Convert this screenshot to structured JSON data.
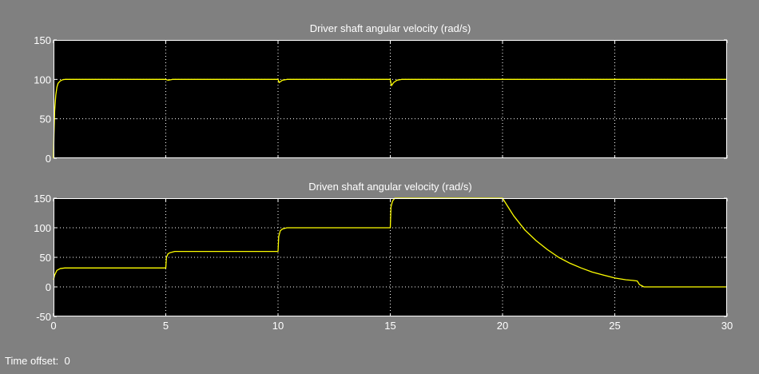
{
  "footer": {
    "time_offset_label": "Time offset:",
    "time_offset_value": "0"
  },
  "colors": {
    "window_background": "#808080",
    "axes_background": "#000000",
    "trace": "#ffff00",
    "grid": "#ffffff",
    "text": "#ffffff"
  },
  "chart_data": [
    {
      "type": "line",
      "title": "Driver shaft angular velocity (rad/s)",
      "xlabel": "",
      "ylabel": "",
      "xlim": [
        0,
        30
      ],
      "ylim": [
        0,
        150
      ],
      "xticks": [
        0,
        5,
        10,
        15,
        20,
        25,
        30
      ],
      "xtick_labels": [
        "",
        "",
        "",
        "",
        "",
        "",
        ""
      ],
      "yticks": [
        0,
        50,
        100,
        150
      ],
      "ytick_labels": [
        "0",
        "50",
        "100",
        "150"
      ],
      "grid": true,
      "series": [
        {
          "color": "#ffff00",
          "x": [
            0,
            0.02,
            0.05,
            0.1,
            0.15,
            0.2,
            0.3,
            0.4,
            0.5,
            5.0,
            5.1,
            5.3,
            10.0,
            10.05,
            10.2,
            10.4,
            15.0,
            15.05,
            15.15,
            15.3,
            15.5,
            30
          ],
          "y": [
            0,
            30,
            60,
            80,
            90,
            95,
            98,
            99.5,
            100,
            100,
            99,
            100,
            100,
            96,
            99,
            100,
            100,
            92,
            96,
            99,
            100,
            100
          ]
        }
      ]
    },
    {
      "type": "line",
      "title": "Driven shaft angular velocity (rad/s)",
      "xlabel": "",
      "ylabel": "",
      "xlim": [
        0,
        30
      ],
      "ylim": [
        -50,
        150
      ],
      "xticks": [
        0,
        5,
        10,
        15,
        20,
        25,
        30
      ],
      "xtick_labels": [
        "0",
        "5",
        "10",
        "15",
        "20",
        "25",
        "30"
      ],
      "yticks": [
        -50,
        0,
        50,
        100,
        150
      ],
      "ytick_labels": [
        "-50",
        "0",
        "50",
        "100",
        "150"
      ],
      "grid": true,
      "series": [
        {
          "color": "#ffff00",
          "x": [
            0,
            0.05,
            0.15,
            0.3,
            0.5,
            5.0,
            5.03,
            5.1,
            5.2,
            5.4,
            10.0,
            10.03,
            10.1,
            10.2,
            10.4,
            15.0,
            15.03,
            15.1,
            15.2,
            20.0,
            20.5,
            21.0,
            21.5,
            22.0,
            22.5,
            23.0,
            23.5,
            24.0,
            24.5,
            25.0,
            25.5,
            25.8,
            26.0,
            26.1,
            26.3,
            30
          ],
          "y": [
            12,
            20,
            28,
            31,
            32,
            32,
            50,
            56,
            58,
            60,
            60,
            85,
            95,
            98,
            100,
            100,
            135,
            145,
            150,
            150,
            120,
            96,
            78,
            63,
            50,
            40,
            32,
            25,
            20,
            15,
            12,
            11,
            10,
            4,
            0,
            0
          ]
        }
      ]
    }
  ]
}
